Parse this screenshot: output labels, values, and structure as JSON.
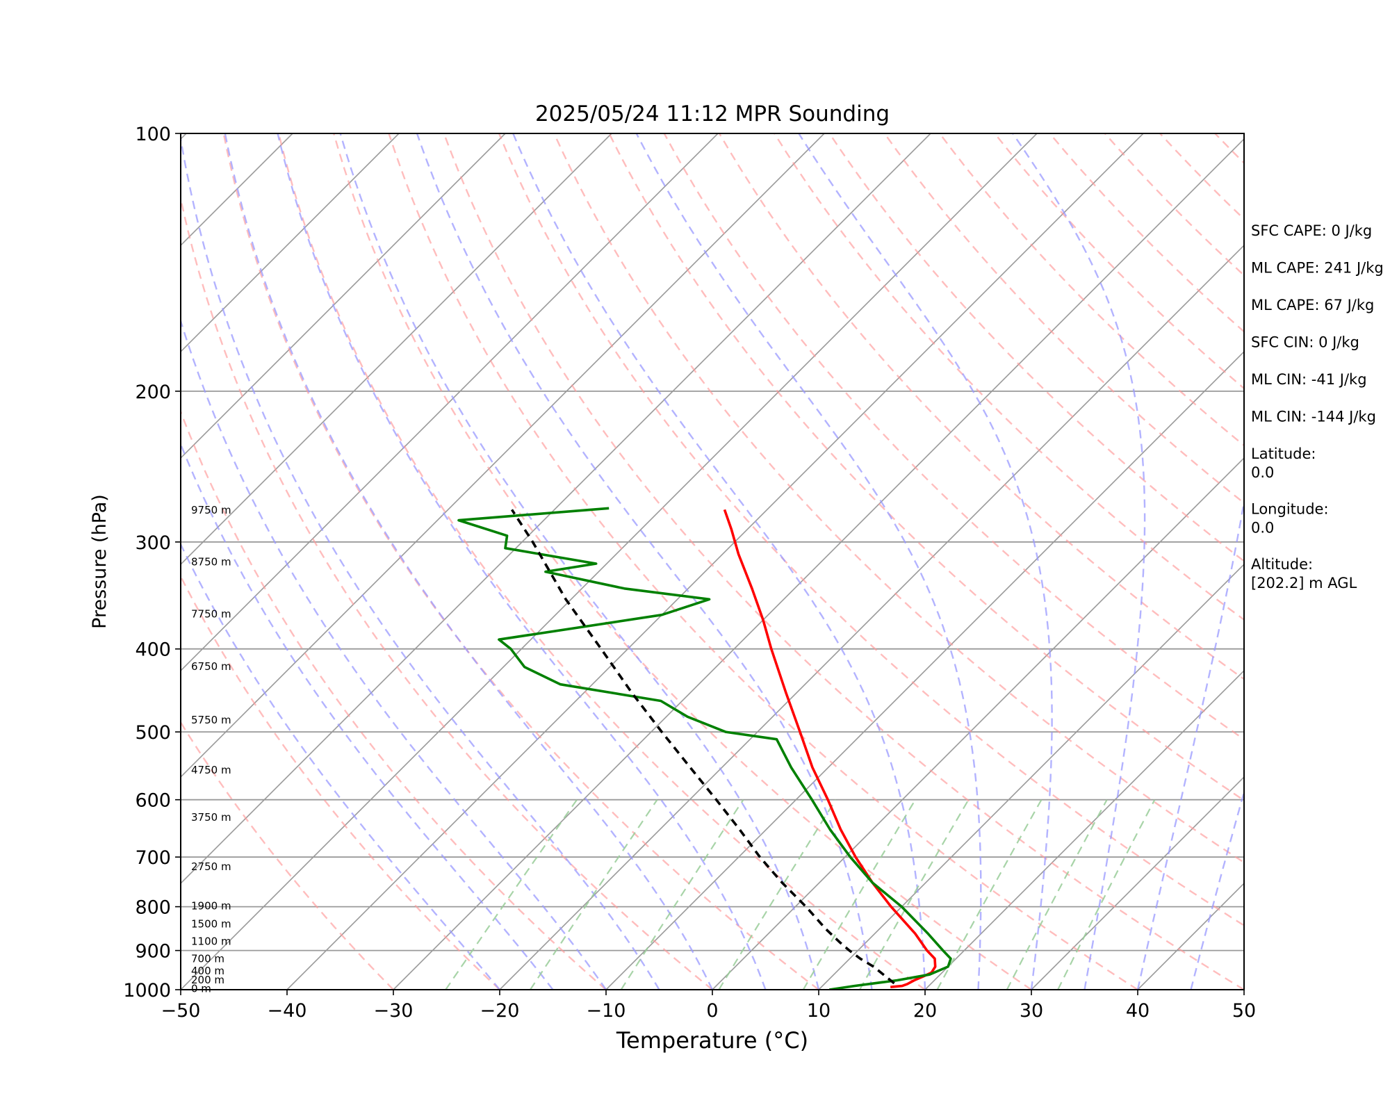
{
  "chart_data": {
    "type": "line",
    "title": "2025/05/24 11:12 MPR Sounding",
    "xlabel": "Temperature (°C)",
    "ylabel": "Pressure (hPa)",
    "xlim": [
      -50,
      50
    ],
    "ylim": [
      1000,
      100
    ],
    "y_scale": "log",
    "skew_degrees": 45,
    "grid": true,
    "x_ticks": [
      -50,
      -40,
      -30,
      -20,
      -10,
      0,
      10,
      20,
      30,
      40,
      50
    ],
    "y_ticks": [
      1000,
      900,
      800,
      700,
      600,
      500,
      400,
      300,
      200,
      100
    ],
    "colors": {
      "temperature": "#ff0000",
      "dewpoint": "#008000",
      "parcel": "#000000",
      "dry_adiabats": "#ff9999",
      "moist_adiabats": "#9999ff",
      "mixing_ratio": "#99cc99",
      "isotherms": "#999999"
    },
    "series": [
      {
        "type": "line",
        "style": "solid",
        "color": "#ff0000",
        "points": [
          {
            "p": 993,
            "t": 16.5
          },
          {
            "p": 990,
            "t": 17.5
          },
          {
            "p": 985,
            "t": 17.8
          },
          {
            "p": 975,
            "t": 18.1
          },
          {
            "p": 965,
            "t": 18.6
          },
          {
            "p": 955,
            "t": 19.0
          },
          {
            "p": 940,
            "t": 18.8
          },
          {
            "p": 920,
            "t": 18.0
          },
          {
            "p": 900,
            "t": 16.5
          },
          {
            "p": 860,
            "t": 13.8
          },
          {
            "p": 800,
            "t": 9.0
          },
          {
            "p": 750,
            "t": 5.0
          },
          {
            "p": 700,
            "t": 1.0
          },
          {
            "p": 650,
            "t": -3.0
          },
          {
            "p": 600,
            "t": -7.0
          },
          {
            "p": 550,
            "t": -11.5
          },
          {
            "p": 500,
            "t": -16.0
          },
          {
            "p": 450,
            "t": -21.0
          },
          {
            "p": 400,
            "t": -26.5
          },
          {
            "p": 370,
            "t": -30.0
          },
          {
            "p": 340,
            "t": -34.0
          },
          {
            "p": 310,
            "t": -38.5
          },
          {
            "p": 290,
            "t": -41.5
          },
          {
            "p": 275,
            "t": -44.0
          }
        ]
      },
      {
        "type": "line",
        "style": "solid",
        "color": "#008000",
        "points": [
          {
            "p": 1000,
            "t": 11.0
          },
          {
            "p": 990,
            "t": 13.0
          },
          {
            "p": 975,
            "t": 16.5
          },
          {
            "p": 960,
            "t": 19.0
          },
          {
            "p": 940,
            "t": 20.0
          },
          {
            "p": 920,
            "t": 19.5
          },
          {
            "p": 900,
            "t": 18.0
          },
          {
            "p": 860,
            "t": 15.0
          },
          {
            "p": 800,
            "t": 10.0
          },
          {
            "p": 750,
            "t": 5.0
          },
          {
            "p": 700,
            "t": 0.5
          },
          {
            "p": 650,
            "t": -4.0
          },
          {
            "p": 600,
            "t": -8.5
          },
          {
            "p": 550,
            "t": -13.5
          },
          {
            "p": 510,
            "t": -17.5
          },
          {
            "p": 500,
            "t": -23.0
          },
          {
            "p": 480,
            "t": -28.0
          },
          {
            "p": 460,
            "t": -32.0
          },
          {
            "p": 440,
            "t": -43.0
          },
          {
            "p": 420,
            "t": -48.0
          },
          {
            "p": 400,
            "t": -51.0
          },
          {
            "p": 390,
            "t": -53.0
          },
          {
            "p": 365,
            "t": -40.0
          },
          {
            "p": 350,
            "t": -37.0
          },
          {
            "p": 340,
            "t": -46.0
          },
          {
            "p": 325,
            "t": -55.0
          },
          {
            "p": 318,
            "t": -51.0
          },
          {
            "p": 305,
            "t": -61.0
          },
          {
            "p": 295,
            "t": -62.0
          },
          {
            "p": 283,
            "t": -68.0
          },
          {
            "p": 274,
            "t": -55.0
          }
        ]
      },
      {
        "type": "line",
        "style": "dashed",
        "color": "#000000",
        "points": [
          {
            "p": 983,
            "t": 16.5
          },
          {
            "p": 940,
            "t": 13.0
          },
          {
            "p": 920,
            "t": 11.0
          },
          {
            "p": 900,
            "t": 9.2
          },
          {
            "p": 880,
            "t": 7.5
          },
          {
            "p": 850,
            "t": 5.0
          },
          {
            "p": 800,
            "t": 1.0
          },
          {
            "p": 750,
            "t": -3.5
          },
          {
            "p": 700,
            "t": -8.0
          },
          {
            "p": 650,
            "t": -12.5
          },
          {
            "p": 600,
            "t": -17.5
          },
          {
            "p": 550,
            "t": -23.0
          },
          {
            "p": 500,
            "t": -29.0
          },
          {
            "p": 450,
            "t": -35.5
          },
          {
            "p": 400,
            "t": -42.5
          },
          {
            "p": 350,
            "t": -50.5
          },
          {
            "p": 300,
            "t": -59.0
          },
          {
            "p": 275,
            "t": -64.0
          }
        ]
      }
    ],
    "height_labels": [
      {
        "p": 999,
        "label": "0 m"
      },
      {
        "p": 976,
        "label": "200 m"
      },
      {
        "p": 953,
        "label": "400 m"
      },
      {
        "p": 922,
        "label": "700 m"
      },
      {
        "p": 880,
        "label": "1100 m"
      },
      {
        "p": 840,
        "label": "1500 m"
      },
      {
        "p": 800,
        "label": "1900 m"
      },
      {
        "p": 720,
        "label": "2750 m"
      },
      {
        "p": 630,
        "label": "3750 m"
      },
      {
        "p": 555,
        "label": "4750 m"
      },
      {
        "p": 485,
        "label": "5750 m"
      },
      {
        "p": 420,
        "label": "6750 m"
      },
      {
        "p": 365,
        "label": "7750 m"
      },
      {
        "p": 317,
        "label": "8750 m"
      },
      {
        "p": 276,
        "label": "9750 m"
      }
    ],
    "annotations": [
      "SFC CAPE: 0 J/kg",
      "ML CAPE: 241 J/kg",
      "ML CAPE: 67 J/kg",
      "SFC CIN: 0 J/kg",
      "ML CIN: -41 J/kg",
      "ML CIN: -144 J/kg",
      "Latitude:\n0.0",
      "Longitude:\n0.0",
      "Altitude:\n[202.2] m AGL"
    ]
  }
}
